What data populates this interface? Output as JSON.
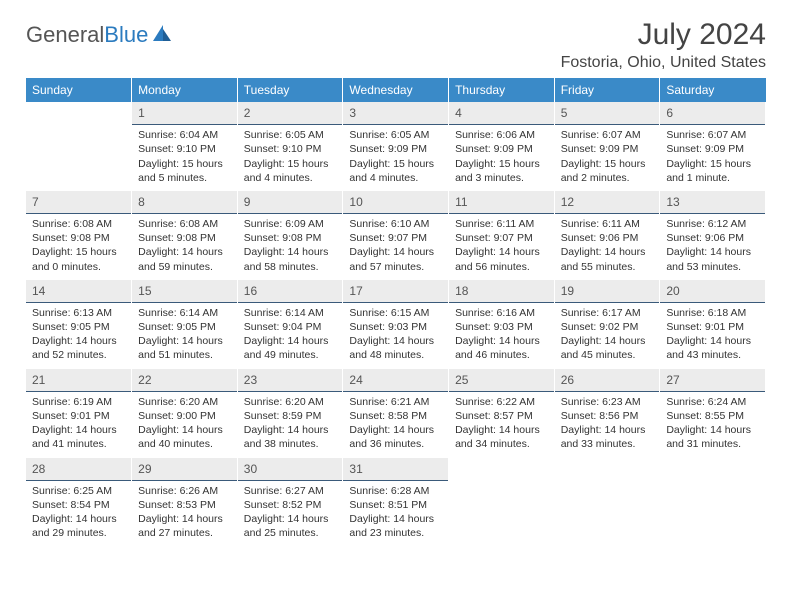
{
  "brand": {
    "name_a": "General",
    "name_b": "Blue"
  },
  "title": "July 2024",
  "subtitle": "Fostoria, Ohio, United States",
  "colors": {
    "header_bg": "#3a8ac8",
    "header_fg": "#ffffff",
    "daynum_bg": "#ececec",
    "daynum_border": "#3a5a7a",
    "text": "#333333",
    "brand_blue": "#2b7bbf"
  },
  "day_headers": [
    "Sunday",
    "Monday",
    "Tuesday",
    "Wednesday",
    "Thursday",
    "Friday",
    "Saturday"
  ],
  "weeks": [
    [
      {
        "num": "",
        "sunrise": "",
        "sunset": "",
        "daylight": ""
      },
      {
        "num": "1",
        "sunrise": "Sunrise: 6:04 AM",
        "sunset": "Sunset: 9:10 PM",
        "daylight": "Daylight: 15 hours and 5 minutes."
      },
      {
        "num": "2",
        "sunrise": "Sunrise: 6:05 AM",
        "sunset": "Sunset: 9:10 PM",
        "daylight": "Daylight: 15 hours and 4 minutes."
      },
      {
        "num": "3",
        "sunrise": "Sunrise: 6:05 AM",
        "sunset": "Sunset: 9:09 PM",
        "daylight": "Daylight: 15 hours and 4 minutes."
      },
      {
        "num": "4",
        "sunrise": "Sunrise: 6:06 AM",
        "sunset": "Sunset: 9:09 PM",
        "daylight": "Daylight: 15 hours and 3 minutes."
      },
      {
        "num": "5",
        "sunrise": "Sunrise: 6:07 AM",
        "sunset": "Sunset: 9:09 PM",
        "daylight": "Daylight: 15 hours and 2 minutes."
      },
      {
        "num": "6",
        "sunrise": "Sunrise: 6:07 AM",
        "sunset": "Sunset: 9:09 PM",
        "daylight": "Daylight: 15 hours and 1 minute."
      }
    ],
    [
      {
        "num": "7",
        "sunrise": "Sunrise: 6:08 AM",
        "sunset": "Sunset: 9:08 PM",
        "daylight": "Daylight: 15 hours and 0 minutes."
      },
      {
        "num": "8",
        "sunrise": "Sunrise: 6:08 AM",
        "sunset": "Sunset: 9:08 PM",
        "daylight": "Daylight: 14 hours and 59 minutes."
      },
      {
        "num": "9",
        "sunrise": "Sunrise: 6:09 AM",
        "sunset": "Sunset: 9:08 PM",
        "daylight": "Daylight: 14 hours and 58 minutes."
      },
      {
        "num": "10",
        "sunrise": "Sunrise: 6:10 AM",
        "sunset": "Sunset: 9:07 PM",
        "daylight": "Daylight: 14 hours and 57 minutes."
      },
      {
        "num": "11",
        "sunrise": "Sunrise: 6:11 AM",
        "sunset": "Sunset: 9:07 PM",
        "daylight": "Daylight: 14 hours and 56 minutes."
      },
      {
        "num": "12",
        "sunrise": "Sunrise: 6:11 AM",
        "sunset": "Sunset: 9:06 PM",
        "daylight": "Daylight: 14 hours and 55 minutes."
      },
      {
        "num": "13",
        "sunrise": "Sunrise: 6:12 AM",
        "sunset": "Sunset: 9:06 PM",
        "daylight": "Daylight: 14 hours and 53 minutes."
      }
    ],
    [
      {
        "num": "14",
        "sunrise": "Sunrise: 6:13 AM",
        "sunset": "Sunset: 9:05 PM",
        "daylight": "Daylight: 14 hours and 52 minutes."
      },
      {
        "num": "15",
        "sunrise": "Sunrise: 6:14 AM",
        "sunset": "Sunset: 9:05 PM",
        "daylight": "Daylight: 14 hours and 51 minutes."
      },
      {
        "num": "16",
        "sunrise": "Sunrise: 6:14 AM",
        "sunset": "Sunset: 9:04 PM",
        "daylight": "Daylight: 14 hours and 49 minutes."
      },
      {
        "num": "17",
        "sunrise": "Sunrise: 6:15 AM",
        "sunset": "Sunset: 9:03 PM",
        "daylight": "Daylight: 14 hours and 48 minutes."
      },
      {
        "num": "18",
        "sunrise": "Sunrise: 6:16 AM",
        "sunset": "Sunset: 9:03 PM",
        "daylight": "Daylight: 14 hours and 46 minutes."
      },
      {
        "num": "19",
        "sunrise": "Sunrise: 6:17 AM",
        "sunset": "Sunset: 9:02 PM",
        "daylight": "Daylight: 14 hours and 45 minutes."
      },
      {
        "num": "20",
        "sunrise": "Sunrise: 6:18 AM",
        "sunset": "Sunset: 9:01 PM",
        "daylight": "Daylight: 14 hours and 43 minutes."
      }
    ],
    [
      {
        "num": "21",
        "sunrise": "Sunrise: 6:19 AM",
        "sunset": "Sunset: 9:01 PM",
        "daylight": "Daylight: 14 hours and 41 minutes."
      },
      {
        "num": "22",
        "sunrise": "Sunrise: 6:20 AM",
        "sunset": "Sunset: 9:00 PM",
        "daylight": "Daylight: 14 hours and 40 minutes."
      },
      {
        "num": "23",
        "sunrise": "Sunrise: 6:20 AM",
        "sunset": "Sunset: 8:59 PM",
        "daylight": "Daylight: 14 hours and 38 minutes."
      },
      {
        "num": "24",
        "sunrise": "Sunrise: 6:21 AM",
        "sunset": "Sunset: 8:58 PM",
        "daylight": "Daylight: 14 hours and 36 minutes."
      },
      {
        "num": "25",
        "sunrise": "Sunrise: 6:22 AM",
        "sunset": "Sunset: 8:57 PM",
        "daylight": "Daylight: 14 hours and 34 minutes."
      },
      {
        "num": "26",
        "sunrise": "Sunrise: 6:23 AM",
        "sunset": "Sunset: 8:56 PM",
        "daylight": "Daylight: 14 hours and 33 minutes."
      },
      {
        "num": "27",
        "sunrise": "Sunrise: 6:24 AM",
        "sunset": "Sunset: 8:55 PM",
        "daylight": "Daylight: 14 hours and 31 minutes."
      }
    ],
    [
      {
        "num": "28",
        "sunrise": "Sunrise: 6:25 AM",
        "sunset": "Sunset: 8:54 PM",
        "daylight": "Daylight: 14 hours and 29 minutes."
      },
      {
        "num": "29",
        "sunrise": "Sunrise: 6:26 AM",
        "sunset": "Sunset: 8:53 PM",
        "daylight": "Daylight: 14 hours and 27 minutes."
      },
      {
        "num": "30",
        "sunrise": "Sunrise: 6:27 AM",
        "sunset": "Sunset: 8:52 PM",
        "daylight": "Daylight: 14 hours and 25 minutes."
      },
      {
        "num": "31",
        "sunrise": "Sunrise: 6:28 AM",
        "sunset": "Sunset: 8:51 PM",
        "daylight": "Daylight: 14 hours and 23 minutes."
      },
      {
        "num": "",
        "sunrise": "",
        "sunset": "",
        "daylight": ""
      },
      {
        "num": "",
        "sunrise": "",
        "sunset": "",
        "daylight": ""
      },
      {
        "num": "",
        "sunrise": "",
        "sunset": "",
        "daylight": ""
      }
    ]
  ]
}
